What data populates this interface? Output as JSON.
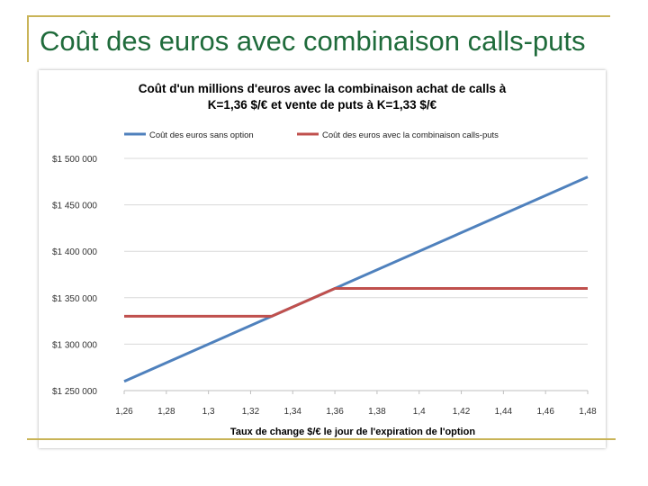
{
  "slide": {
    "title": "Coût des euros avec combinaison calls-puts"
  },
  "colors": {
    "frame": "#c9b458",
    "title": "#1f6b3b",
    "series_no_option": "#4f81bd",
    "series_calls_puts": "#c0504d",
    "grid": "#d9d9d9"
  },
  "chart_data": {
    "type": "line",
    "title_line1": "Coût d'un millions d'euros avec la combinaison achat de calls à",
    "title_line2": "K=1,36 $/€ et vente de puts à K=1,33 $/€",
    "xlabel": "Taux de change  $/€ le jour de l'expiration de l'option",
    "ylabel": "",
    "x_ticks": [
      "1,26",
      "1,28",
      "1,3",
      "1,32",
      "1,34",
      "1,36",
      "1,38",
      "1,4",
      "1,42",
      "1,44",
      "1,46",
      "1,48"
    ],
    "y_ticks": [
      "$1 250 000",
      "$1 300 000",
      "$1 350 000",
      "$1 400 000",
      "$1 450 000",
      "$1 500 000"
    ],
    "xlim": [
      1.26,
      1.48
    ],
    "ylim": [
      1250000,
      1500000
    ],
    "grid": "horizontal",
    "legend_position": "top",
    "series": [
      {
        "name": "Coût des euros sans option",
        "color": "#4f81bd",
        "points": [
          [
            1.26,
            1260000
          ],
          [
            1.48,
            1480000
          ]
        ]
      },
      {
        "name": "Coût des euros avec la combinaison calls-puts",
        "color": "#c0504d",
        "points": [
          [
            1.26,
            1330000
          ],
          [
            1.33,
            1330000
          ],
          [
            1.36,
            1360000
          ],
          [
            1.48,
            1360000
          ]
        ]
      }
    ]
  }
}
